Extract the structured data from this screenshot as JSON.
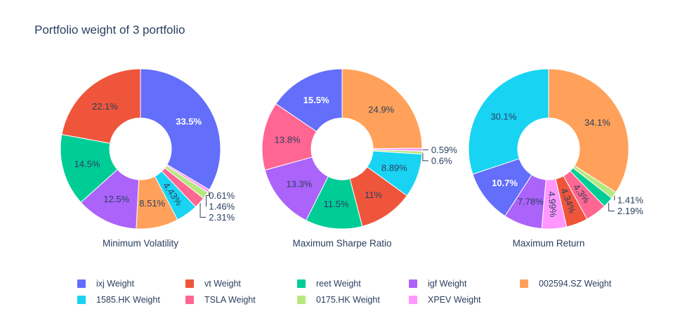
{
  "title": "Portfolio weight of 3 portfolio",
  "text_color": "#2a3f5f",
  "legend": {
    "position": "bottom-horizontal",
    "items": [
      {
        "label": "ixj Weight",
        "color": "#636EFA"
      },
      {
        "label": "vt Weight",
        "color": "#EF553B"
      },
      {
        "label": "reet Weight",
        "color": "#00CC96"
      },
      {
        "label": "igf Weight",
        "color": "#AB63FA"
      },
      {
        "label": "002594.SZ Weight",
        "color": "#FFA15A"
      },
      {
        "label": "1585.HK Weight",
        "color": "#19D3F3"
      },
      {
        "label": "TSLA Weight",
        "color": "#FF6692"
      },
      {
        "label": "0175.HK Weight",
        "color": "#B6E880"
      },
      {
        "label": "XPEV Weight",
        "color": "#FF97FF"
      }
    ]
  },
  "chart_data": [
    {
      "type": "pie",
      "title": "Minimum Volatility",
      "hole": 0.39,
      "direction": "clockwise",
      "start": "top",
      "slices": [
        {
          "name": "ixj Weight",
          "value": 33.5,
          "label": "33.5%",
          "color": "#636EFA"
        },
        {
          "name": "XPEV Weight",
          "value": 0.61,
          "label": "0.61%",
          "color": "#FF97FF"
        },
        {
          "name": "0175.HK Weight",
          "value": 1.46,
          "label": "1.46%",
          "color": "#B6E880"
        },
        {
          "name": "TSLA Weight",
          "value": 2.31,
          "label": "2.31%",
          "color": "#FF6692"
        },
        {
          "name": "1585.HK Weight",
          "value": 4.43,
          "label": "4.43%",
          "color": "#19D3F3"
        },
        {
          "name": "002594.SZ Weight",
          "value": 8.51,
          "label": "8.51%",
          "color": "#FFA15A"
        },
        {
          "name": "igf Weight",
          "value": 12.5,
          "label": "12.5%",
          "color": "#AB63FA"
        },
        {
          "name": "reet Weight",
          "value": 14.5,
          "label": "14.5%",
          "color": "#00CC96"
        },
        {
          "name": "vt Weight",
          "value": 22.1,
          "label": "22.1%",
          "color": "#EF553B"
        }
      ]
    },
    {
      "type": "pie",
      "title": "Maximum Sharpe Ratio",
      "hole": 0.39,
      "direction": "clockwise",
      "start": "top",
      "slices": [
        {
          "name": "002594.SZ Weight",
          "value": 24.9,
          "label": "24.9%",
          "color": "#FFA15A"
        },
        {
          "name": "XPEV Weight",
          "value": 0.59,
          "label": "0.59%",
          "color": "#FF97FF"
        },
        {
          "name": "0175.HK Weight",
          "value": 0.6,
          "label": "0.6%",
          "color": "#B6E880"
        },
        {
          "name": "1585.HK Weight",
          "value": 8.89,
          "label": "8.89%",
          "color": "#19D3F3"
        },
        {
          "name": "vt Weight",
          "value": 11,
          "label": "11%",
          "color": "#EF553B"
        },
        {
          "name": "reet Weight",
          "value": 11.5,
          "label": "11.5%",
          "color": "#00CC96"
        },
        {
          "name": "igf Weight",
          "value": 13.3,
          "label": "13.3%",
          "color": "#AB63FA"
        },
        {
          "name": "TSLA Weight",
          "value": 13.8,
          "label": "13.8%",
          "color": "#FF6692"
        },
        {
          "name": "ixj Weight",
          "value": 15.5,
          "label": "15.5%",
          "color": "#636EFA"
        }
      ]
    },
    {
      "type": "pie",
      "title": "Maximum Return",
      "hole": 0.39,
      "direction": "clockwise",
      "start": "top",
      "slices": [
        {
          "name": "002594.SZ Weight",
          "value": 34.1,
          "label": "34.1%",
          "color": "#FFA15A"
        },
        {
          "name": "0175.HK Weight",
          "value": 1.41,
          "label": "1.41%",
          "color": "#B6E880"
        },
        {
          "name": "reet Weight",
          "value": 2.19,
          "label": "2.19%",
          "color": "#00CC96"
        },
        {
          "name": "TSLA Weight",
          "value": 4.3,
          "label": "4.3%",
          "color": "#FF6692"
        },
        {
          "name": "vt Weight",
          "value": 4.34,
          "label": "4.34%",
          "color": "#EF553B"
        },
        {
          "name": "XPEV Weight",
          "value": 4.99,
          "label": "4.99%",
          "color": "#FF97FF"
        },
        {
          "name": "igf Weight",
          "value": 7.78,
          "label": "7.78%",
          "color": "#AB63FA"
        },
        {
          "name": "ixj Weight",
          "value": 10.7,
          "label": "10.7%",
          "color": "#636EFA"
        },
        {
          "name": "1585.HK Weight",
          "value": 30.1,
          "label": "30.1%",
          "color": "#19D3F3"
        }
      ]
    }
  ]
}
